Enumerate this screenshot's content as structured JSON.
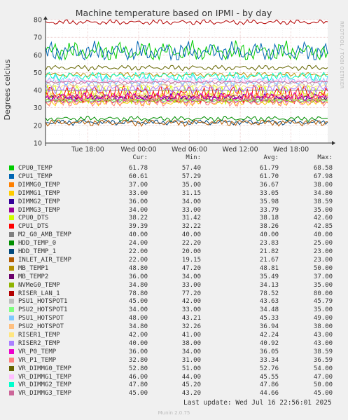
{
  "chart_data": {
    "type": "line",
    "title": "Machine temperature based on IPMI - by day",
    "ylabel": "Degrees celcius",
    "ylim": [
      10,
      80
    ],
    "y_ticks": [
      "10",
      "20",
      "30",
      "40",
      "50",
      "60",
      "70",
      "80"
    ],
    "x_ticks": [
      "Tue 18:00",
      "Wed 00:00",
      "Wed 06:00",
      "Wed 12:00",
      "Wed 18:00"
    ],
    "side_label": "RRDTOOL / TOBI OETIKER",
    "columns": [
      "Cur:",
      "Min:",
      "Avg:",
      "Max:"
    ],
    "series": [
      {
        "name": "CPU0_TEMP",
        "color": "#00cc00",
        "cur": "61.78",
        "min": "57.40",
        "avg": "61.79",
        "max": "68.58"
      },
      {
        "name": "CPU1_TEMP",
        "color": "#0066b3",
        "cur": "60.61",
        "min": "57.29",
        "avg": "61.70",
        "max": "67.98"
      },
      {
        "name": "DIMMG0_TEMP",
        "color": "#ff8000",
        "cur": "37.00",
        "min": "35.00",
        "avg": "36.67",
        "max": "38.00"
      },
      {
        "name": "DIMMG1_TEMP",
        "color": "#ffcc00",
        "cur": "33.00",
        "min": "31.15",
        "avg": "33.05",
        "max": "34.80"
      },
      {
        "name": "DIMMG2_TEMP",
        "color": "#330099",
        "cur": "36.00",
        "min": "34.00",
        "avg": "35.98",
        "max": "38.59"
      },
      {
        "name": "DIMMG3_TEMP",
        "color": "#990099",
        "cur": "34.00",
        "min": "33.00",
        "avg": "33.79",
        "max": "35.00"
      },
      {
        "name": "CPU0_DTS",
        "color": "#ccff00",
        "cur": "38.22",
        "min": "31.42",
        "avg": "38.18",
        "max": "42.60"
      },
      {
        "name": "CPU1_DTS",
        "color": "#ff0000",
        "cur": "39.39",
        "min": "32.22",
        "avg": "38.26",
        "max": "42.85"
      },
      {
        "name": "M2_G0_AMB_TEMP",
        "color": "#808080",
        "cur": "40.00",
        "min": "40.00",
        "avg": "40.00",
        "max": "40.00"
      },
      {
        "name": "HDD_TEMP_0",
        "color": "#008f00",
        "cur": "24.00",
        "min": "22.20",
        "avg": "23.83",
        "max": "25.00"
      },
      {
        "name": "HDD_TEMP_1",
        "color": "#00487d",
        "cur": "22.00",
        "min": "20.00",
        "avg": "21.82",
        "max": "23.00"
      },
      {
        "name": "INLET_AIR_TEMP",
        "color": "#b35a00",
        "cur": "22.00",
        "min": "19.15",
        "avg": "21.67",
        "max": "23.00"
      },
      {
        "name": "MB_TEMP1",
        "color": "#b38f00",
        "cur": "48.80",
        "min": "47.20",
        "avg": "48.81",
        "max": "50.00"
      },
      {
        "name": "MB_TEMP2",
        "color": "#6b006b",
        "cur": "36.00",
        "min": "34.00",
        "avg": "35.49",
        "max": "37.00"
      },
      {
        "name": "NVMeG0_TEMP",
        "color": "#8fb300",
        "cur": "34.80",
        "min": "33.00",
        "avg": "34.13",
        "max": "35.00"
      },
      {
        "name": "RISER_LAN_1",
        "color": "#b30000",
        "cur": "78.80",
        "min": "77.20",
        "avg": "78.52",
        "max": "80.00"
      },
      {
        "name": "PSU1_HOTSPOT1",
        "color": "#bebebe",
        "cur": "45.00",
        "min": "42.00",
        "avg": "43.63",
        "max": "45.79"
      },
      {
        "name": "PSU2_HOTSPOT1",
        "color": "#80ff80",
        "cur": "34.00",
        "min": "33.00",
        "avg": "34.48",
        "max": "35.00"
      },
      {
        "name": "PSU1_HOTSPOT",
        "color": "#80c9ff",
        "cur": "48.00",
        "min": "43.21",
        "avg": "45.33",
        "max": "49.00"
      },
      {
        "name": "PSU2_HOTSPOT",
        "color": "#ffc080",
        "cur": "34.80",
        "min": "32.26",
        "avg": "36.94",
        "max": "38.00"
      },
      {
        "name": "RISER1_TEMP",
        "color": "#ffe680",
        "cur": "42.00",
        "min": "41.00",
        "avg": "42.24",
        "max": "43.00"
      },
      {
        "name": "RISER2_TEMP",
        "color": "#aa80ff",
        "cur": "40.00",
        "min": "38.00",
        "avg": "40.92",
        "max": "43.00"
      },
      {
        "name": "VR_P0_TEMP",
        "color": "#ee00cc",
        "cur": "36.00",
        "min": "34.00",
        "avg": "36.05",
        "max": "38.59"
      },
      {
        "name": "VR_P1_TEMP",
        "color": "#ff8080",
        "cur": "32.80",
        "min": "31.00",
        "avg": "33.34",
        "max": "36.59"
      },
      {
        "name": "VR_DIMMG0_TEMP",
        "color": "#666600",
        "cur": "52.80",
        "min": "51.00",
        "avg": "52.76",
        "max": "54.00"
      },
      {
        "name": "VR_DIMMG1_TEMP",
        "color": "#ffbfff",
        "cur": "46.00",
        "min": "44.00",
        "avg": "45.55",
        "max": "47.00"
      },
      {
        "name": "VR_DIMMG2_TEMP",
        "color": "#00ffcc",
        "cur": "47.80",
        "min": "45.20",
        "avg": "47.86",
        "max": "50.00"
      },
      {
        "name": "VR_DIMMG3_TEMP",
        "color": "#cc6699",
        "cur": "45.00",
        "min": "43.20",
        "avg": "44.66",
        "max": "45.00"
      }
    ]
  },
  "footer": {
    "last_update": "Last update: Wed Jul 16 22:56:01 2025",
    "version": "Munin 2.0.75"
  }
}
